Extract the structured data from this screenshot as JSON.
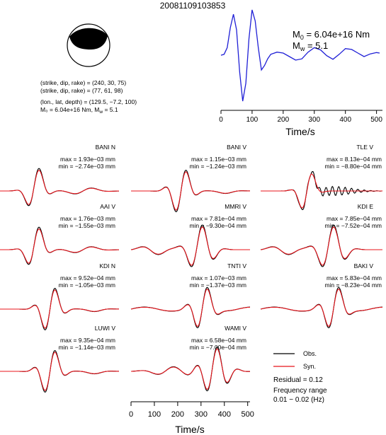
{
  "title": "20081109103853",
  "mechanism": {
    "nodal_plane_1": "(strike, dip, rake) = (240, 30, 75)",
    "nodal_plane_2": "(strike, dip, rake) = (77, 61, 98)",
    "location": "(lon., lat, depth) = (129.5, −7.2, 100)",
    "moment": "M₀ = 6.04e+16 Nm, M",
    "moment_mw_sub": "w",
    "moment_mw_val": " = 5.1"
  },
  "stf_panel": {
    "m0_label": "M",
    "m0_sub": "0",
    "m0_value": " = 6.04e+16 Nm",
    "mw_label": "M",
    "mw_sub": "w",
    "mw_value": " = 5.1",
    "xlabel": "Time/s",
    "xticks": [
      "0",
      "100",
      "200",
      "300",
      "400",
      "500"
    ]
  },
  "waveform_panel": {
    "xlabel": "Time/s",
    "xticks": [
      "0",
      "100",
      "200",
      "300",
      "400",
      "500"
    ]
  },
  "legend": {
    "obs": "Obs.",
    "syn": "Syn.",
    "residual": "Residual = 0.12",
    "freq_label": "Frequency range",
    "freq_value": "0.01 − 0.02 (Hz)"
  },
  "colors": {
    "observed": "#000000",
    "synthetic": "#e8141b",
    "stf": "#1f1fd6"
  },
  "chart_data": {
    "type": "line",
    "stf": {
      "x": [
        0,
        10,
        20,
        30,
        40,
        50,
        60,
        70,
        80,
        90,
        100,
        110,
        120,
        130,
        140,
        150,
        160,
        180,
        200,
        220,
        240,
        260,
        280,
        300,
        320,
        340,
        360,
        380,
        400,
        420,
        440,
        460,
        480,
        500,
        510
      ],
      "y": [
        0.3,
        0.5,
        2.0,
        6.5,
        9.5,
        6.0,
        -3.5,
        -10.0,
        -6.0,
        4.0,
        10.5,
        8.0,
        2.0,
        -3.0,
        -2.0,
        -0.5,
        0.5,
        1.0,
        0.8,
        0.0,
        -0.8,
        -0.5,
        1.0,
        2.0,
        1.5,
        0.2,
        -0.6,
        0.5,
        1.8,
        1.6,
        0.8,
        0.0,
        0.6,
        0.9,
        0.8
      ],
      "xlim": [
        0,
        510
      ]
    },
    "stations": [
      {
        "name": "BANI N",
        "max": "max = 1.93e−03 mm",
        "min": "min = −2.74e−03 mm",
        "pattern": 0
      },
      {
        "name": "BANI V",
        "max": "max = 1.15e−03 mm",
        "min": "min = −1.24e−03 mm",
        "pattern": 1
      },
      {
        "name": "TLE V",
        "max": "max = 8.13e−04 mm",
        "min": "min = −8.80e−04 mm",
        "pattern": 2
      },
      {
        "name": "AAI V",
        "max": "max = 1.76e−03 mm",
        "min": "min = −1.55e−03 mm",
        "pattern": 0
      },
      {
        "name": "MMRI V",
        "max": "max = 7.81e−04 mm",
        "min": "min = −9.30e−04 mm",
        "pattern": 3
      },
      {
        "name": "KDI E",
        "max": "max = 7.85e−04 mm",
        "min": "min = −7.52e−04 mm",
        "pattern": 3
      },
      {
        "name": "KDI N",
        "max": "max = 9.52e−04 mm",
        "min": "min = −1.05e−03 mm",
        "pattern": 1
      },
      {
        "name": "TNTI V",
        "max": "max = 1.07e−03 mm",
        "min": "min = −1.37e−03 mm",
        "pattern": 4
      },
      {
        "name": "BAKI V",
        "max": "max = 5.83e−04 mm",
        "min": "min = −8.23e−04 mm",
        "pattern": 4
      },
      {
        "name": "LUWI V",
        "max": "max = 9.35e−04 mm",
        "min": "min = −1.14e−03 mm",
        "pattern": 1
      },
      {
        "name": "WAMI V",
        "max": "max = 6.58e−04 mm",
        "min": "min = −7.00e−04 mm",
        "pattern": 5
      }
    ],
    "waveform_xlim": [
      0,
      510
    ]
  }
}
